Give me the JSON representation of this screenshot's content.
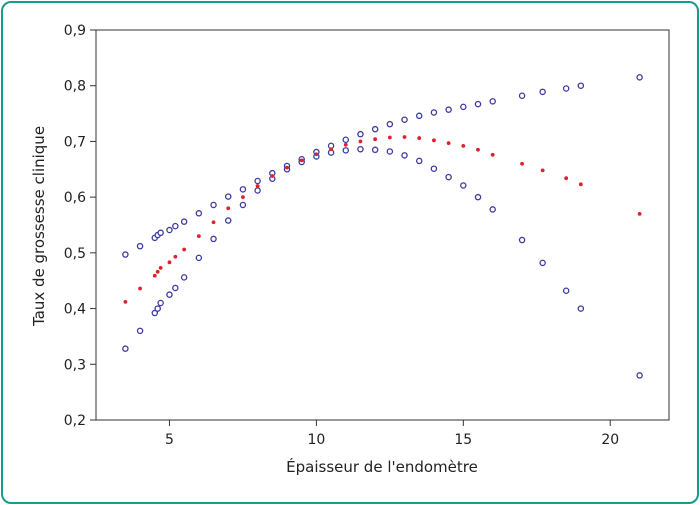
{
  "chart_data": {
    "type": "scatter",
    "title": "",
    "xlabel": "Épaisseur de l'endomètre",
    "ylabel": "Taux de grossesse clinique",
    "xlim": [
      2.5,
      22
    ],
    "ylim": [
      0.2,
      0.9
    ],
    "x_ticks": [
      5,
      10,
      15,
      20
    ],
    "x_tick_labels": [
      "5",
      "10",
      "15",
      "20"
    ],
    "y_ticks": [
      0.2,
      0.3,
      0.4,
      0.5,
      0.6,
      0.7,
      0.8,
      0.9
    ],
    "y_tick_labels": [
      "0,2",
      "0,3",
      "0,4",
      "0,5",
      "0,6",
      "0,7",
      "0,8",
      "0,9"
    ],
    "grid": false,
    "legend": "none",
    "series": [
      {
        "marker": "open-circle",
        "color": "#3a3aa0",
        "x": [
          3.5,
          4.0,
          4.5,
          4.6,
          4.7,
          5.0,
          5.2,
          5.5,
          6.0,
          6.5,
          7.0,
          7.5,
          8.0,
          8.5,
          9.0,
          9.5,
          10.0,
          10.5,
          11.0,
          11.5,
          12.0,
          12.5,
          13.0,
          13.5,
          14.0,
          14.5,
          15.0,
          15.5,
          16.0,
          17.0,
          17.7,
          18.5,
          19.0,
          21.0
        ],
        "y": [
          0.497,
          0.512,
          0.527,
          0.532,
          0.536,
          0.541,
          0.548,
          0.556,
          0.571,
          0.586,
          0.601,
          0.614,
          0.629,
          0.643,
          0.656,
          0.668,
          0.681,
          0.692,
          0.703,
          0.713,
          0.722,
          0.731,
          0.739,
          0.746,
          0.752,
          0.757,
          0.762,
          0.767,
          0.772,
          0.782,
          0.789,
          0.795,
          0.8,
          0.815
        ]
      },
      {
        "marker": "open-circle",
        "color": "#3a3aa0",
        "x": [
          3.5,
          4.0,
          4.5,
          4.6,
          4.7,
          5.0,
          5.2,
          5.5,
          6.0,
          6.5,
          7.0,
          7.5,
          8.0,
          8.5,
          9.0,
          9.5,
          10.0,
          10.5,
          11.0,
          11.5,
          12.0,
          12.5,
          13.0,
          13.5,
          14.0,
          14.5,
          15.0,
          15.5,
          16.0,
          17.0,
          17.7,
          18.5,
          19.0,
          21.0
        ],
        "y": [
          0.328,
          0.36,
          0.392,
          0.4,
          0.41,
          0.425,
          0.437,
          0.456,
          0.491,
          0.525,
          0.558,
          0.586,
          0.612,
          0.633,
          0.65,
          0.663,
          0.673,
          0.68,
          0.684,
          0.686,
          0.685,
          0.682,
          0.675,
          0.665,
          0.651,
          0.636,
          0.621,
          0.6,
          0.578,
          0.523,
          0.482,
          0.432,
          0.4,
          0.28
        ]
      },
      {
        "marker": "filled-dot",
        "color": "#e0202a",
        "x": [
          3.5,
          4.0,
          4.5,
          4.6,
          4.7,
          5.0,
          5.2,
          5.5,
          6.0,
          6.5,
          7.0,
          7.5,
          8.0,
          8.5,
          9.0,
          9.5,
          10.0,
          10.5,
          11.0,
          11.5,
          12.0,
          12.5,
          13.0,
          13.5,
          14.0,
          14.5,
          15.0,
          15.5,
          16.0,
          17.0,
          17.7,
          18.5,
          19.0,
          21.0
        ],
        "y": [
          0.412,
          0.436,
          0.459,
          0.466,
          0.473,
          0.483,
          0.493,
          0.506,
          0.53,
          0.555,
          0.58,
          0.6,
          0.62,
          0.638,
          0.653,
          0.666,
          0.677,
          0.686,
          0.694,
          0.7,
          0.704,
          0.707,
          0.708,
          0.706,
          0.702,
          0.697,
          0.692,
          0.685,
          0.676,
          0.66,
          0.648,
          0.634,
          0.623,
          0.57
        ]
      }
    ]
  }
}
